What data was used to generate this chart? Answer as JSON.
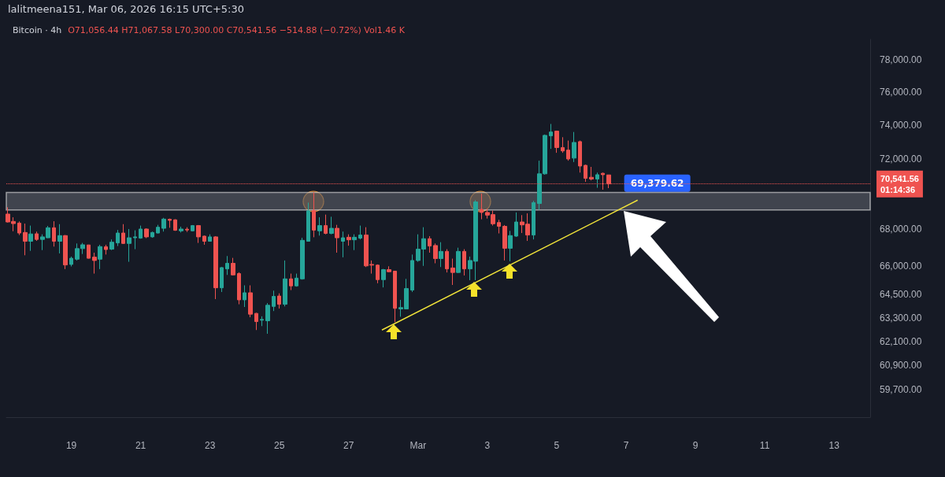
{
  "chart_data": {
    "type": "candlestick",
    "title": "Bitcoin · 4h",
    "subtitle": "O71,056.44 H71,067.58 L70,300.00 C70,541.56 −514.88 (−0.72%) Vol1.46 K",
    "annotations": [
      "lalitmeena151, Mar 06, 2026 16:15 UTC+5:30",
      {
        "text": "69,379.62",
        "x": "2026-03-06T20:00",
        "y": 69379.62
      }
    ],
    "log": true,
    "xlim": [
      "2026-02-17T03:00",
      "2026-03-14T01:00"
    ],
    "xticks": [
      {
        "value": "2026-02-19",
        "label": "19"
      },
      {
        "value": "2026-02-21",
        "label": "21"
      },
      {
        "value": "2026-02-23",
        "label": "23"
      },
      {
        "value": "2026-02-25",
        "label": "25"
      },
      {
        "value": "2026-02-27",
        "label": "27"
      },
      {
        "value": "2026-03-01",
        "label": "Mar"
      },
      {
        "value": "2026-03-03",
        "label": "3"
      },
      {
        "value": "2026-03-05",
        "label": "5"
      },
      {
        "value": "2026-03-07",
        "label": "7"
      },
      {
        "value": "2026-03-09",
        "label": "9"
      },
      {
        "value": "2026-03-11",
        "label": "11"
      },
      {
        "value": "2026-03-13",
        "label": "13"
      }
    ],
    "ylim": [
      58400,
      79300
    ],
    "yticks": [
      {
        "value": 59700,
        "label": "59,700.00"
      },
      {
        "value": 60900,
        "label": "60,900.00"
      },
      {
        "value": 62100,
        "label": "62,100.00"
      },
      {
        "value": 63300,
        "label": "63,300.00"
      },
      {
        "value": 64500,
        "label": "64,500.00"
      },
      {
        "value": 66000,
        "label": "66,000.00"
      },
      {
        "value": 68000,
        "label": "68,000.00"
      },
      {
        "value": 72000,
        "label": "72,000.00"
      },
      {
        "value": 74000,
        "label": "74,000.00"
      },
      {
        "value": 76000,
        "label": "76,000.00"
      },
      {
        "value": 78000,
        "label": "78,000.00"
      }
    ],
    "bands": [
      {
        "axis": "y",
        "from": 69070,
        "to": 70060,
        "color": "#5d606b"
      }
    ],
    "ref_lines": [
      {
        "axis": "y",
        "value": 70541.56,
        "label": "70,541.56\n01:14:36",
        "color": "#ef5350",
        "line_style": "dotted"
      }
    ],
    "x": [
      "2026-02-17T04:00",
      "2026-02-17T08:00",
      "2026-02-17T12:00",
      "2026-02-17T16:00",
      "2026-02-17T20:00",
      "2026-02-18T00:00",
      "2026-02-18T04:00",
      "2026-02-18T08:00",
      "2026-02-18T12:00",
      "2026-02-18T16:00",
      "2026-02-18T20:00",
      "2026-02-19T00:00",
      "2026-02-19T04:00",
      "2026-02-19T08:00",
      "2026-02-19T12:00",
      "2026-02-19T16:00",
      "2026-02-19T20:00",
      "2026-02-20T00:00",
      "2026-02-20T04:00",
      "2026-02-20T08:00",
      "2026-02-20T12:00",
      "2026-02-20T16:00",
      "2026-02-20T20:00",
      "2026-02-21T00:00",
      "2026-02-21T04:00",
      "2026-02-21T08:00",
      "2026-02-21T12:00",
      "2026-02-21T16:00",
      "2026-02-21T20:00",
      "2026-02-22T00:00",
      "2026-02-22T04:00",
      "2026-02-22T08:00",
      "2026-02-22T12:00",
      "2026-02-22T16:00",
      "2026-02-22T20:00",
      "2026-02-23T00:00",
      "2026-02-23T04:00",
      "2026-02-23T08:00",
      "2026-02-23T12:00",
      "2026-02-23T16:00",
      "2026-02-23T20:00",
      "2026-02-24T00:00",
      "2026-02-24T04:00",
      "2026-02-24T08:00",
      "2026-02-24T12:00",
      "2026-02-24T16:00",
      "2026-02-24T20:00",
      "2026-02-25T00:00",
      "2026-02-25T04:00",
      "2026-02-25T08:00",
      "2026-02-25T12:00",
      "2026-02-25T16:00",
      "2026-02-25T20:00",
      "2026-02-26T00:00",
      "2026-02-26T04:00",
      "2026-02-26T08:00",
      "2026-02-26T12:00",
      "2026-02-26T16:00",
      "2026-02-26T20:00",
      "2026-02-27T00:00",
      "2026-02-27T04:00",
      "2026-02-27T08:00",
      "2026-02-27T12:00",
      "2026-02-27T16:00",
      "2026-02-27T20:00",
      "2026-02-28T00:00",
      "2026-02-28T04:00",
      "2026-02-28T08:00",
      "2026-02-28T12:00",
      "2026-02-28T16:00",
      "2026-02-28T20:00",
      "2026-03-01T00:00",
      "2026-03-01T04:00",
      "2026-03-01T08:00",
      "2026-03-01T12:00",
      "2026-03-01T16:00",
      "2026-03-01T20:00",
      "2026-03-02T00:00",
      "2026-03-02T04:00",
      "2026-03-02T08:00",
      "2026-03-02T12:00",
      "2026-03-02T16:00",
      "2026-03-02T20:00",
      "2026-03-03T00:00",
      "2026-03-03T04:00",
      "2026-03-03T08:00",
      "2026-03-03T12:00",
      "2026-03-03T16:00",
      "2026-03-03T20:00",
      "2026-03-04T00:00",
      "2026-03-04T04:00",
      "2026-03-04T08:00",
      "2026-03-04T12:00",
      "2026-03-04T16:00",
      "2026-03-04T20:00",
      "2026-03-05T00:00",
      "2026-03-05T04:00",
      "2026-03-05T08:00",
      "2026-03-05T12:00",
      "2026-03-05T16:00",
      "2026-03-05T20:00",
      "2026-03-06T00:00",
      "2026-03-06T04:00",
      "2026-03-06T08:00",
      "2026-03-06T12:00"
    ],
    "ohlc": [
      [
        68840,
        69220,
        68370,
        68400
      ],
      [
        68430,
        68660,
        67890,
        68310
      ],
      [
        68340,
        68430,
        67680,
        67790
      ],
      [
        67820,
        68310,
        66580,
        67340
      ],
      [
        67340,
        68200,
        66820,
        67740
      ],
      [
        67750,
        67870,
        67360,
        67440
      ],
      [
        67440,
        67720,
        66860,
        67580
      ],
      [
        67530,
        68180,
        67510,
        68080
      ],
      [
        68080,
        68440,
        67050,
        67340
      ],
      [
        67340,
        68280,
        66680,
        67650
      ],
      [
        67650,
        67680,
        65840,
        66060
      ],
      [
        66090,
        66510,
        65980,
        66420
      ],
      [
        66370,
        67220,
        66300,
        66940
      ],
      [
        66940,
        67250,
        66650,
        67150
      ],
      [
        67140,
        67150,
        66400,
        66420
      ],
      [
        66480,
        66720,
        65600,
        66300
      ],
      [
        66370,
        67150,
        65840,
        67050
      ],
      [
        67040,
        67150,
        66620,
        66890
      ],
      [
        66910,
        67440,
        66860,
        67290
      ],
      [
        67250,
        67960,
        67080,
        67790
      ],
      [
        67790,
        68280,
        67190,
        67220
      ],
      [
        67220,
        68010,
        66230,
        67530
      ],
      [
        67530,
        67940,
        66910,
        67580
      ],
      [
        67510,
        68200,
        67480,
        68010
      ],
      [
        68010,
        68050,
        67510,
        67580
      ],
      [
        67580,
        67870,
        67530,
        67820
      ],
      [
        67790,
        68240,
        67770,
        68110
      ],
      [
        68050,
        68630,
        67870,
        68560
      ],
      [
        68550,
        68590,
        68080,
        68490
      ],
      [
        68520,
        68550,
        67910,
        67940
      ],
      [
        67910,
        68140,
        67820,
        68010
      ],
      [
        68000,
        68110,
        67850,
        67960
      ],
      [
        67910,
        68230,
        67880,
        68200
      ],
      [
        68200,
        68230,
        67250,
        67580
      ],
      [
        67620,
        67650,
        67150,
        67340
      ],
      [
        67340,
        67720,
        67340,
        67580
      ],
      [
        67580,
        67620,
        64260,
        64850
      ],
      [
        64850,
        65950,
        64630,
        65920
      ],
      [
        65850,
        66540,
        65530,
        66150
      ],
      [
        66150,
        66440,
        65500,
        65530
      ],
      [
        65600,
        65670,
        63990,
        64220
      ],
      [
        64220,
        64980,
        63850,
        64590
      ],
      [
        64590,
        64980,
        63320,
        63480
      ],
      [
        63520,
        63550,
        62670,
        63100
      ],
      [
        63170,
        63370,
        62870,
        63210
      ],
      [
        63140,
        64050,
        62480,
        63940
      ],
      [
        63880,
        64700,
        63640,
        64400
      ],
      [
        64420,
        64560,
        63770,
        63990
      ],
      [
        63990,
        66300,
        63880,
        65320
      ],
      [
        65320,
        65600,
        64730,
        64950
      ],
      [
        64950,
        65600,
        64910,
        65360
      ],
      [
        65320,
        67530,
        65280,
        67390
      ],
      [
        67340,
        69480,
        67340,
        69020
      ],
      [
        69040,
        70060,
        67560,
        67950
      ],
      [
        67910,
        68660,
        67650,
        68200
      ],
      [
        68200,
        68810,
        67720,
        67770
      ],
      [
        67770,
        68690,
        67720,
        68050
      ],
      [
        68050,
        68240,
        66720,
        67530
      ],
      [
        67340,
        67870,
        66470,
        67530
      ],
      [
        67560,
        67720,
        67100,
        67420
      ],
      [
        67420,
        67720,
        66860,
        67560
      ],
      [
        67510,
        68200,
        67440,
        67680
      ],
      [
        67680,
        68110,
        65950,
        66010
      ],
      [
        66090,
        66300,
        65600,
        66050
      ],
      [
        66050,
        66090,
        65090,
        65280
      ],
      [
        65280,
        65850,
        64870,
        65810
      ],
      [
        65810,
        65990,
        65670,
        65700
      ],
      [
        65730,
        65740,
        63070,
        63780
      ],
      [
        63750,
        64220,
        63350,
        63820
      ],
      [
        63750,
        65320,
        63750,
        64810
      ],
      [
        64730,
        66620,
        64630,
        66300
      ],
      [
        66300,
        67720,
        66230,
        66910
      ],
      [
        66910,
        68110,
        66010,
        67480
      ],
      [
        67480,
        67620,
        66720,
        67080
      ],
      [
        67110,
        67220,
        66150,
        66400
      ],
      [
        66400,
        67290,
        65950,
        66790
      ],
      [
        66790,
        66910,
        65660,
        65850
      ],
      [
        65900,
        66400,
        65000,
        65660
      ],
      [
        65660,
        66990,
        65630,
        66790
      ],
      [
        66790,
        66910,
        65500,
        65850
      ],
      [
        65850,
        66510,
        65250,
        66300
      ],
      [
        66260,
        69620,
        65250,
        69520
      ],
      [
        69100,
        69990,
        68550,
        68930
      ],
      [
        68930,
        69130,
        68590,
        68780
      ],
      [
        68810,
        69030,
        68200,
        68300
      ],
      [
        68370,
        68520,
        67770,
        68160
      ],
      [
        68160,
        68230,
        66300,
        66960
      ],
      [
        66960,
        67910,
        66260,
        67650
      ],
      [
        67620,
        68930,
        67580,
        68400
      ],
      [
        68400,
        68780,
        67790,
        68240
      ],
      [
        68280,
        68880,
        67360,
        67680
      ],
      [
        67680,
        69580,
        67440,
        69480
      ],
      [
        69430,
        71880,
        69070,
        71120
      ],
      [
        71120,
        73420,
        71070,
        73370
      ],
      [
        73340,
        74050,
        72570,
        73570
      ],
      [
        73620,
        73650,
        72340,
        72650
      ],
      [
        72650,
        73260,
        72340,
        72450
      ],
      [
        72500,
        73060,
        71880,
        71980
      ],
      [
        72030,
        73570,
        71800,
        72950
      ],
      [
        73000,
        73060,
        71190,
        71570
      ],
      [
        71610,
        71650,
        70660,
        70860
      ],
      [
        70920,
        71520,
        70740,
        70820
      ],
      [
        70820,
        71190,
        70320,
        71070
      ],
      [
        71150,
        71190,
        70210,
        71070
      ],
      [
        71056.44,
        71067.58,
        70300,
        70541.56
      ]
    ],
    "series": [
      {
        "type": "line",
        "color": "#f2e43a",
        "x": [
          "2026-02-27T23:00",
          "2026-03-07T08:00"
        ],
        "values": [
          62670,
          69620
        ]
      }
    ]
  }
}
